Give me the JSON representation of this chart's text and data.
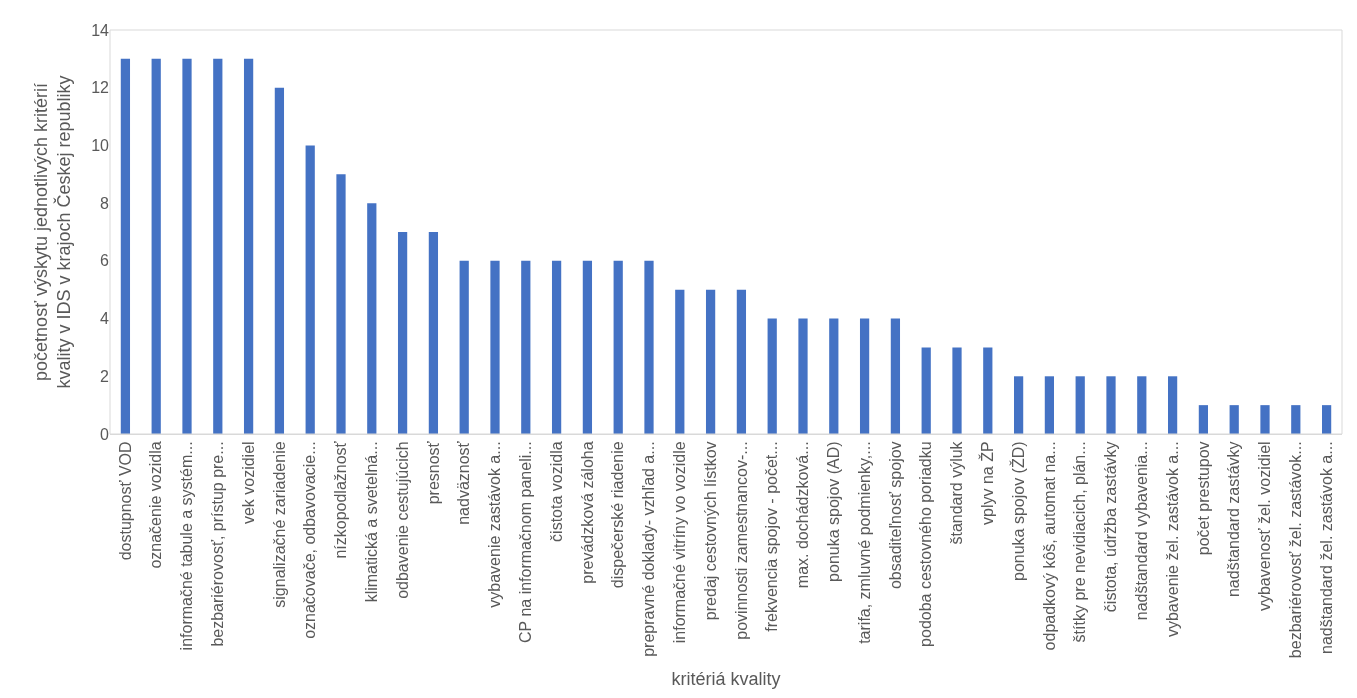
{
  "chart_data": {
    "type": "bar",
    "xlabel": "kritériá kvality",
    "ylabel": "početnosť výskytu jednotlivých kritérií\nkvality v IDS v krajoch Českej republiky",
    "categories": [
      "dostupnosť VOD",
      "označenie vozidla",
      "informačné tabule a systém...",
      "bezbariérovosť, prístup pre...",
      "vek vozidiel",
      "signalizačné zariadenie",
      "označovače, odbavovacie...",
      "nízkopodlažnosť",
      "klimatická a svetelná...",
      "odbavenie cestujúcich",
      "presnosť",
      "nadväznosť",
      "vybavenie zastávok a...",
      "CP na informačnom paneli...",
      "čistota vozidla",
      "prevádzková záloha",
      "dispečerské riadenie",
      "prepravné doklady- vzhľad a...",
      "informačné vitríny vo vozidle",
      "predaj cestovných lístkov",
      "povinnosti zamestnancov-...",
      "frekvencia spojov - počet...",
      "max. dochádzková...",
      "ponuka spojov (AD)",
      "tarifa, zmluvné podmienky,...",
      "obsaditeľnosť spojov",
      "podoba cestovného poriadku",
      "štandard výluk",
      "vplyv na ŽP",
      "ponuka spojov (ŽD)",
      "odpadkový kôš, automat na...",
      "štítky pre nevidiacich, plán...",
      "čistota, údržba zastávky",
      "nadštandard vybavenia...",
      "vybavenie žel. zastávok a...",
      "počet prestupov",
      "nadštandard zastávky",
      "vybavenosť žel. vozidiel",
      "bezbariérovosť žel. zastávok...",
      "nadštandard žel. zastávok a..."
    ],
    "values": [
      13,
      13,
      13,
      13,
      13,
      12,
      10,
      9,
      8,
      7,
      7,
      6,
      6,
      6,
      6,
      6,
      6,
      6,
      5,
      5,
      5,
      4,
      4,
      4,
      4,
      4,
      3,
      3,
      3,
      2,
      2,
      2,
      2,
      2,
      2,
      1,
      1,
      1,
      1,
      1
    ],
    "color": "#4472c4",
    "ylim": [
      0,
      14
    ],
    "yticks": [
      0,
      2,
      4,
      6,
      8,
      10,
      12,
      14
    ]
  }
}
